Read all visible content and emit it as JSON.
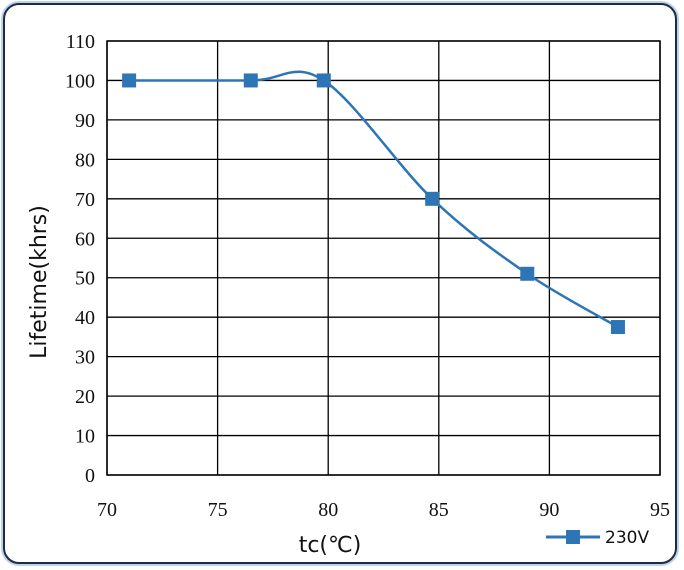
{
  "chart_data": {
    "type": "line",
    "title": "",
    "xlabel": "tc(℃)",
    "ylabel": "Lifetime(khrs)",
    "xlim": [
      70,
      95
    ],
    "ylim": [
      0,
      110
    ],
    "xticks": [
      "70",
      "75",
      "80",
      "85",
      "90",
      "95"
    ],
    "yticks": [
      "0",
      "10",
      "20",
      "30",
      "40",
      "50",
      "60",
      "70",
      "80",
      "90",
      "100",
      "110"
    ],
    "grid": true,
    "legend": "bottom-right",
    "series": [
      {
        "name": "230V",
        "color": "#2e75b6",
        "marker": "square",
        "smooth": true,
        "x": [
          71,
          76.5,
          79.8,
          84.7,
          89,
          93.1
        ],
        "y": [
          100,
          100,
          100,
          70,
          51,
          37.5
        ]
      }
    ]
  }
}
